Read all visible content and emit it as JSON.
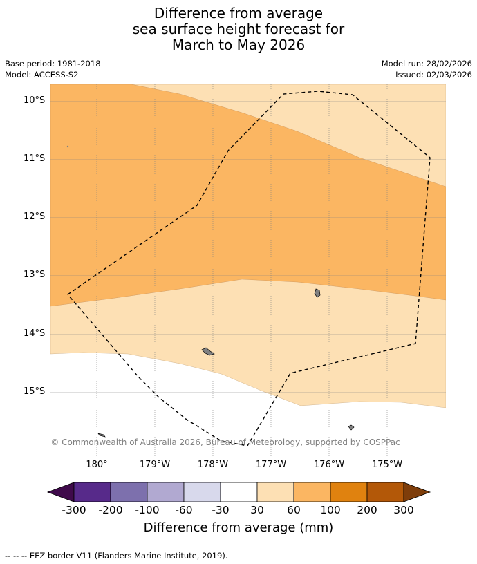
{
  "title": {
    "line1": "Difference from average",
    "line2": "sea surface height forecast for",
    "line3": "March to May 2026"
  },
  "meta_left": {
    "base_period": "Base period: 1981-2018",
    "model": "Model: ACCESS-S2"
  },
  "meta_right": {
    "model_run": "Model run: 28/02/2026",
    "issued": "Issued: 02/03/2026"
  },
  "map": {
    "lat_labels": [
      "10°S",
      "11°S",
      "12°S",
      "13°S",
      "14°S",
      "15°S"
    ],
    "lon_labels": [
      "180°",
      "179°W",
      "178°W",
      "177°W",
      "176°W",
      "175°W"
    ],
    "copyright": "© Commonwealth of Australia 2026, Bureau of Meteorology, supported by COSPPac",
    "colors": {
      "band_60_100": "#fbb662",
      "band_30_60": "#fde0b4",
      "land": "#808080",
      "grid": "#808080"
    }
  },
  "colorbar": {
    "labels": [
      "-300",
      "-200",
      "-100",
      "-60",
      "-30",
      "30",
      "60",
      "100",
      "200",
      "300"
    ],
    "colors": [
      "#3f0a4b",
      "#572a8a",
      "#7d70ad",
      "#b1a9d1",
      "#d8d9ec",
      "#ffffff",
      "#fde0b4",
      "#fbb662",
      "#e0820f",
      "#b35808",
      "#7e3d0a"
    ],
    "title": "Difference from average (mm)"
  },
  "footnote": "--  --  -- EEZ border V11 (Flanders Marine Institute, 2019)."
}
